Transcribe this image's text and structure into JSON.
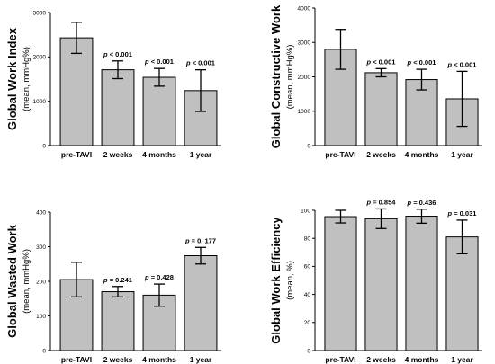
{
  "chart_data": [
    {
      "type": "bar",
      "title": "",
      "ylabel": "Global Work Index",
      "yunit": "(mean, mmHg%)",
      "categories": [
        "pre-TAVI",
        "2 weeks",
        "4 months",
        "1 year"
      ],
      "values": [
        2430,
        1710,
        1540,
        1240
      ],
      "errors": [
        350,
        200,
        200,
        470
      ],
      "annotations": [
        "",
        "p < 0.001",
        "p < 0.001",
        "p < 0.001"
      ],
      "ylim": [
        0,
        3000
      ],
      "yticks": [
        0,
        1000,
        2000,
        3000
      ],
      "grid": false,
      "bar_color": "#c0c0c0"
    },
    {
      "type": "bar",
      "title": "",
      "ylabel": "Global Constructive Work",
      "yunit": "(mean, mmHg%)",
      "categories": [
        "pre-TAVI",
        "2 weeks",
        "4 months",
        "1 year"
      ],
      "values": [
        2800,
        2120,
        1920,
        1360
      ],
      "errors": [
        580,
        120,
        300,
        800
      ],
      "annotations": [
        "",
        "p < 0.001",
        "p < 0.001",
        "p < 0.001"
      ],
      "ylim": [
        0,
        4000
      ],
      "yticks": [
        0,
        1000,
        2000,
        3000,
        4000
      ],
      "grid": false,
      "bar_color": "#c0c0c0"
    },
    {
      "type": "bar",
      "title": "",
      "ylabel": "Global Wasted Work",
      "yunit": "(mean, mmHg%)",
      "categories": [
        "pre-TAVI",
        "2 weeks",
        "4 months",
        "1 year"
      ],
      "values": [
        205,
        170,
        160,
        274
      ],
      "errors": [
        50,
        15,
        32,
        24
      ],
      "annotations": [
        "",
        "p = 0.241",
        "p = 0.428",
        "p = 0. 177"
      ],
      "ylim": [
        0,
        400
      ],
      "yticks": [
        0,
        100,
        200,
        300,
        400
      ],
      "grid": false,
      "bar_color": "#c0c0c0"
    },
    {
      "type": "bar",
      "title": "",
      "ylabel": "Global Work Efficiency",
      "yunit": "(mean, %)",
      "categories": [
        "pre-TAVI",
        "2 weeks",
        "4 months",
        "1 year"
      ],
      "values": [
        95.5,
        94,
        95.8,
        81
      ],
      "errors": [
        4.5,
        7,
        5,
        12
      ],
      "annotations": [
        "",
        "p = 0.854",
        "p = 0.436",
        "p = 0.031"
      ],
      "ylim": [
        0,
        100
      ],
      "yticks": [
        0,
        20,
        40,
        60,
        80,
        100
      ],
      "grid": false,
      "bar_color": "#c0c0c0"
    }
  ]
}
